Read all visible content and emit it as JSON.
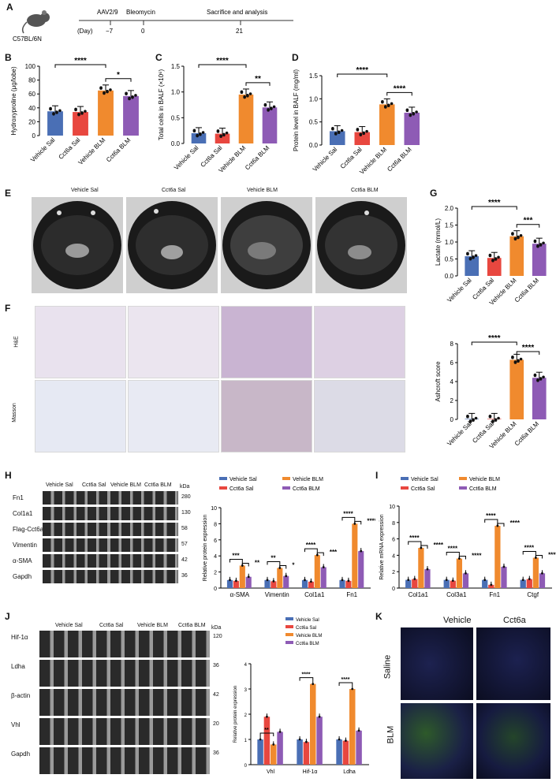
{
  "panel_letters": [
    "A",
    "B",
    "C",
    "D",
    "E",
    "F",
    "G",
    "H",
    "I",
    "J",
    "K"
  ],
  "timeline": {
    "strain": "C57BL/6N",
    "day_label": "(Day)",
    "events": [
      "AAV2/9",
      "Bleomycin",
      "Sacrifice and analysis"
    ],
    "days": [
      "−7",
      "0",
      "21"
    ]
  },
  "groups": [
    "Vehicle Sal",
    "Cct6a Sal",
    "Vehicle BLM",
    "Cct6a BLM"
  ],
  "kda_label": "kDa",
  "he_label": "H&E",
  "masson_label": "Masson",
  "wb_h": {
    "labels": [
      "Fn1",
      "Col1a1",
      "Flag-Cct6a",
      "Vimentin",
      "α-SMA",
      "Gapdh"
    ],
    "kda": [
      "280",
      "130",
      "58",
      "57",
      "42",
      "36"
    ]
  },
  "wb_j": {
    "labels": [
      "Hif-1α",
      "Ldha",
      "β-actin",
      "Vhl",
      "Gapdh"
    ],
    "kda": [
      "120",
      "36",
      "42",
      "20",
      "36"
    ]
  },
  "k_panel": {
    "cols": [
      "Vehicle",
      "Cct6a"
    ],
    "rows": [
      "Saline",
      "BLM"
    ]
  },
  "colors": {
    "vs": "#4a6fb5",
    "cs": "#e8473f",
    "vb": "#f08a2e",
    "cb": "#8e5bb5"
  },
  "chart_data": [
    {
      "id": "B",
      "type": "bar",
      "ylabel": "Hydroxyproline (μg/lobe)",
      "ylim": [
        0,
        100
      ],
      "ticks": [
        0,
        20,
        40,
        60,
        80,
        100
      ],
      "categories": [
        "Vehicle Sal",
        "Cct6a Sal",
        "Vehicle BLM",
        "Cct6a BLM"
      ],
      "values": [
        35,
        34,
        65,
        57
      ],
      "sig": [
        "****",
        "*"
      ]
    },
    {
      "id": "C",
      "type": "bar",
      "ylabel": "Total cells in BALF (×10⁶)",
      "ylim": [
        0,
        1.5
      ],
      "ticks": [
        0.0,
        0.5,
        1.0,
        1.5
      ],
      "categories": [
        "Vehicle Sal",
        "Cct6a Sal",
        "Vehicle BLM",
        "Cct6a BLM"
      ],
      "values": [
        0.2,
        0.19,
        0.95,
        0.7
      ],
      "sig": [
        "****",
        "**"
      ]
    },
    {
      "id": "D",
      "type": "bar",
      "ylabel": "Protein level in BALF (mg/ml)",
      "ylim": [
        0,
        1.5
      ],
      "ticks": [
        0.0,
        0.5,
        1.0,
        1.5
      ],
      "categories": [
        "Vehicle Sal",
        "Cct6a Sal",
        "Vehicle BLM",
        "Cct6a BLM"
      ],
      "values": [
        0.3,
        0.28,
        0.88,
        0.7
      ],
      "sig": [
        "****",
        "****"
      ]
    },
    {
      "id": "G1",
      "type": "bar",
      "ylabel": "Lactate (mmol/L)",
      "ylim": [
        0,
        2.0
      ],
      "ticks": [
        0.0,
        0.5,
        1.0,
        1.5,
        2.0
      ],
      "categories": [
        "Vehicle Sal",
        "Cct6a Sal",
        "Vehicle BLM",
        "Cct6a BLM"
      ],
      "values": [
        0.58,
        0.53,
        1.17,
        0.95
      ],
      "sig": [
        "****",
        "***"
      ]
    },
    {
      "id": "G2",
      "type": "bar",
      "ylabel": "Ashcroft score",
      "ylim": [
        0,
        8
      ],
      "ticks": [
        0,
        2,
        4,
        6,
        8
      ],
      "categories": [
        "Vehicle Sal",
        "Cct6a Sal",
        "Vehicle BLM",
        "Cct6a BLM"
      ],
      "values": [
        0.05,
        0.05,
        6.3,
        4.4
      ],
      "sig": [
        "****",
        "****"
      ]
    },
    {
      "id": "H",
      "type": "bar",
      "ylabel": "Relative protein expression",
      "ylim": [
        0,
        10
      ],
      "ticks": [
        0,
        2,
        4,
        6,
        8,
        10
      ],
      "categories": [
        "α-SMA",
        "Vimentin",
        "Col1a1",
        "Fn1"
      ],
      "series": [
        {
          "name": "Vehicle Sal",
          "values": [
            1,
            1,
            1,
            1
          ]
        },
        {
          "name": "Cct6a Sal",
          "values": [
            0.9,
            0.85,
            0.8,
            0.9
          ]
        },
        {
          "name": "Vehicle BLM",
          "values": [
            2.8,
            2.5,
            4.1,
            8.0
          ]
        },
        {
          "name": "Cct6a BLM",
          "values": [
            1.4,
            1.5,
            2.6,
            4.6
          ]
        }
      ],
      "sig": [
        "***",
        "**",
        "**",
        "*",
        "****",
        "***",
        "****",
        "****"
      ]
    },
    {
      "id": "I",
      "type": "bar",
      "ylabel": "Relative mRNA expression",
      "ylim": [
        0,
        10
      ],
      "ticks": [
        0,
        2,
        4,
        6,
        8,
        10
      ],
      "categories": [
        "Col1a1",
        "Col3a1",
        "Fn1",
        "Ctgf"
      ],
      "series": [
        {
          "name": "Vehicle Sal",
          "values": [
            1,
            1,
            1,
            1
          ]
        },
        {
          "name": "Cct6a Sal",
          "values": [
            1.1,
            0.9,
            0.4,
            1.1
          ]
        },
        {
          "name": "Vehicle BLM",
          "values": [
            4.9,
            3.6,
            7.6,
            3.7
          ]
        },
        {
          "name": "Cct6a BLM",
          "values": [
            2.3,
            1.8,
            2.6,
            1.8
          ]
        }
      ],
      "sig": [
        "****",
        "****",
        "****",
        "****",
        "****",
        "****",
        "****",
        "****"
      ]
    },
    {
      "id": "J",
      "type": "bar",
      "ylabel": "Relative protein expression",
      "ylim": [
        0,
        4
      ],
      "ticks": [
        0,
        1,
        2,
        3,
        4
      ],
      "categories": [
        "Vhl",
        "Hif-1α",
        "Ldha"
      ],
      "series": [
        {
          "name": "Vehicle Sal",
          "values": [
            1,
            1,
            1
          ]
        },
        {
          "name": "Cct6a Sal",
          "values": [
            1.9,
            0.9,
            0.95
          ]
        },
        {
          "name": "Vehicle BLM",
          "values": [
            0.8,
            3.2,
            3.0
          ]
        },
        {
          "name": "Cct6a BLM",
          "values": [
            1.3,
            1.9,
            1.35
          ]
        }
      ],
      "sig": [
        "**",
        "****",
        "****"
      ]
    }
  ]
}
